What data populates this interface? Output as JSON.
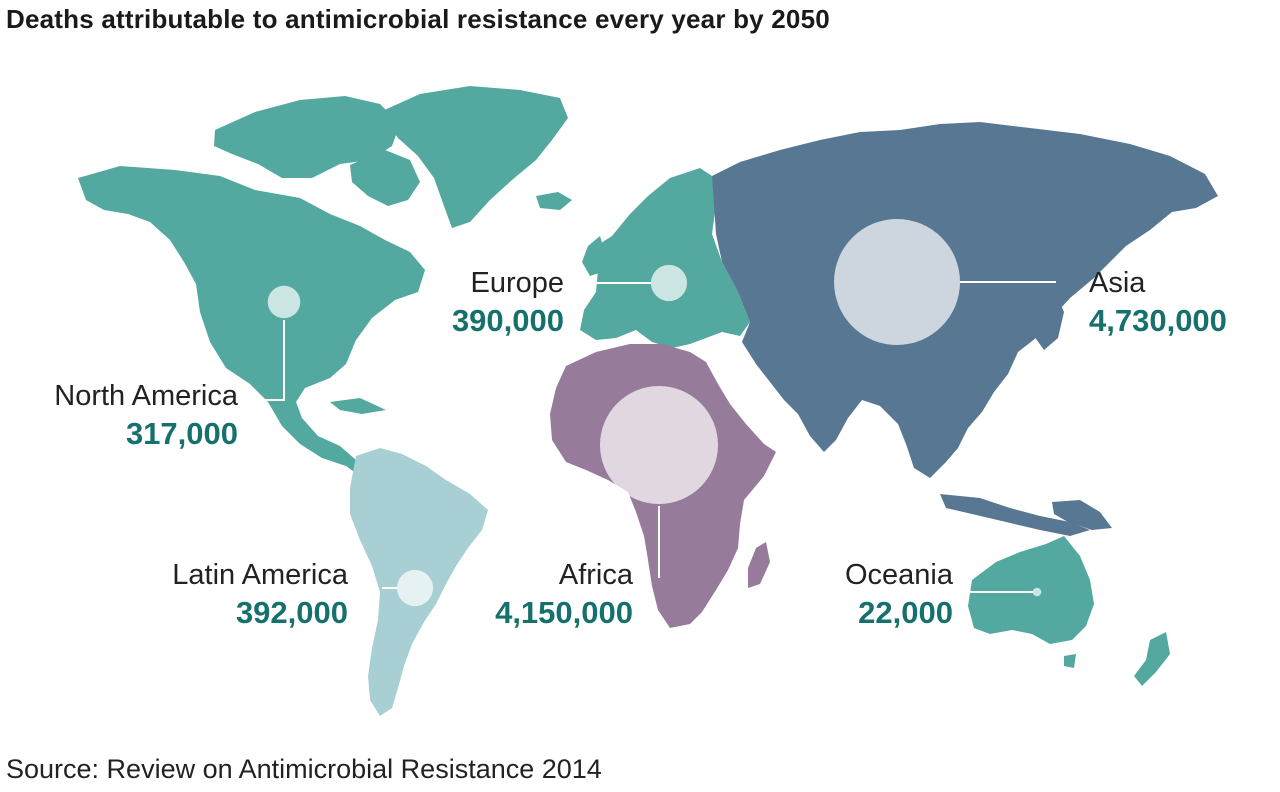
{
  "title": "Deaths attributable to antimicrobial resistance every year by 2050",
  "source": "Source: Review on Antimicrobial Resistance 2014",
  "colors": {
    "north_america": "#53a8a0",
    "europe": "#53a8a0",
    "oceania": "#53a8a0",
    "latin_america": "#a8d0d4",
    "africa": "#967b9b",
    "asia": "#587793",
    "value_text": "#16706b",
    "bubble": "#ffffff"
  },
  "regions": [
    {
      "key": "north_america",
      "name": "North America",
      "value": "317,000",
      "deaths": 317000
    },
    {
      "key": "europe",
      "name": "Europe",
      "value": "390,000",
      "deaths": 390000
    },
    {
      "key": "asia",
      "name": "Asia",
      "value": "4,730,000",
      "deaths": 4730000
    },
    {
      "key": "latin_america",
      "name": "Latin America",
      "value": "392,000",
      "deaths": 392000
    },
    {
      "key": "africa",
      "name": "Africa",
      "value": "4,150,000",
      "deaths": 4150000
    },
    {
      "key": "oceania",
      "name": "Oceania",
      "value": "22,000",
      "deaths": 22000
    }
  ]
}
